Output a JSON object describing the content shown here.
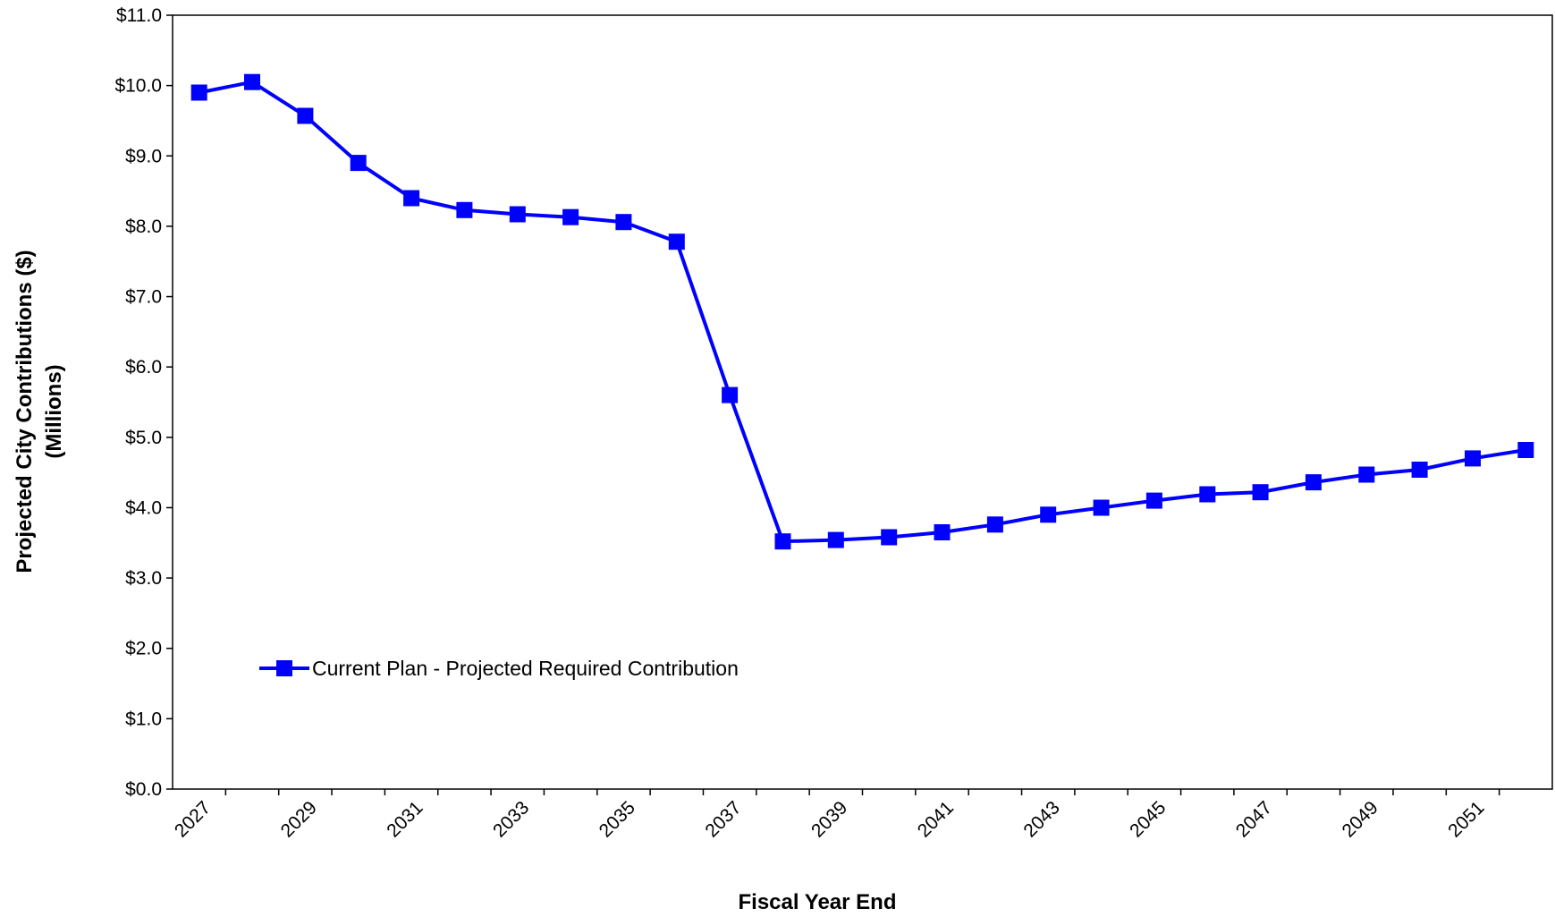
{
  "chart_data": {
    "type": "line",
    "title": "",
    "xlabel": "Fiscal Year End",
    "ylabel_line1": "Projected City Contributions ($)",
    "ylabel_line2": "(Millions)",
    "ylim": [
      0,
      11
    ],
    "y_tick_step": 1,
    "y_tick_labels": [
      "$0.0",
      "$1.0",
      "$2.0",
      "$3.0",
      "$4.0",
      "$5.0",
      "$6.0",
      "$7.0",
      "$8.0",
      "$9.0",
      "$10.0",
      "$11.0"
    ],
    "x": [
      2027,
      2028,
      2029,
      2030,
      2031,
      2032,
      2033,
      2034,
      2035,
      2036,
      2037,
      2038,
      2039,
      2040,
      2041,
      2042,
      2043,
      2044,
      2045,
      2046,
      2047,
      2048,
      2049,
      2050,
      2051,
      2052
    ],
    "x_tick_labels": [
      "2027",
      "2029",
      "2031",
      "2033",
      "2035",
      "2037",
      "2039",
      "2041",
      "2043",
      "2045",
      "2047",
      "2049",
      "2051"
    ],
    "series": [
      {
        "name": "Current Plan - Projected Required Contribution",
        "color": "#0000ff",
        "marker": "square",
        "values": [
          9.9,
          10.05,
          9.57,
          8.9,
          8.4,
          8.23,
          8.17,
          8.13,
          8.06,
          7.78,
          5.6,
          3.52,
          3.54,
          3.58,
          3.65,
          3.76,
          3.9,
          4.0,
          4.1,
          4.19,
          4.22,
          4.36,
          4.47,
          4.54,
          4.7,
          4.82
        ]
      }
    ],
    "grid": false,
    "legend_position": "inside-lower-left"
  }
}
